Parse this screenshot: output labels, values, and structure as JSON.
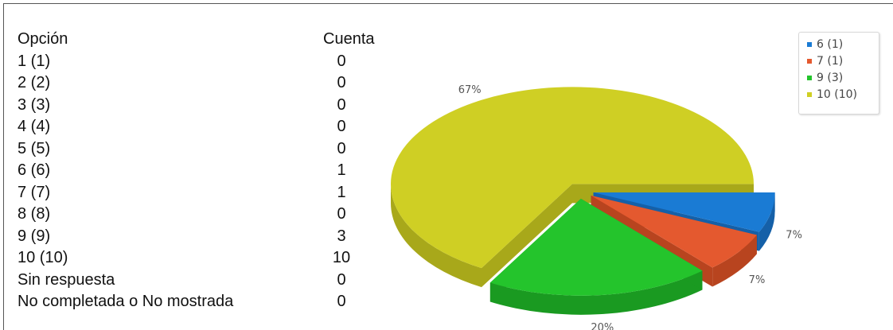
{
  "table": {
    "headers": {
      "option": "Opción",
      "count": "Cuenta"
    },
    "rows": [
      {
        "option": "1 (1)",
        "count": "0"
      },
      {
        "option": "2 (2)",
        "count": "0"
      },
      {
        "option": "3 (3)",
        "count": "0"
      },
      {
        "option": "4 (4)",
        "count": "0"
      },
      {
        "option": "5 (5)",
        "count": "0"
      },
      {
        "option": "6 (6)",
        "count": "1"
      },
      {
        "option": "7 (7)",
        "count": "1"
      },
      {
        "option": "8 (8)",
        "count": "0"
      },
      {
        "option": "9 (9)",
        "count": "3"
      },
      {
        "option": "10 (10)",
        "count": "10"
      },
      {
        "option": "Sin respuesta",
        "count": "0"
      },
      {
        "option": "No completada o No mostrada",
        "count": "0"
      }
    ]
  },
  "chart_data": {
    "type": "pie",
    "style": "3d-exploded",
    "legend_position": "top-right",
    "slices": [
      {
        "legend_label": "6 (1)",
        "value": 1,
        "percent_label": "7%",
        "color": "#1a7bd4",
        "side_color": "#1560a8"
      },
      {
        "legend_label": "7 (1)",
        "value": 1,
        "percent_label": "7%",
        "color": "#e4592f",
        "side_color": "#b8441f"
      },
      {
        "legend_label": "9 (3)",
        "value": 3,
        "percent_label": "20%",
        "color": "#24c42c",
        "side_color": "#1a9a21"
      },
      {
        "legend_label": "10 (10)",
        "value": 10,
        "percent_label": "67%",
        "color": "#cfcf24",
        "side_color": "#a8a81a"
      }
    ]
  }
}
